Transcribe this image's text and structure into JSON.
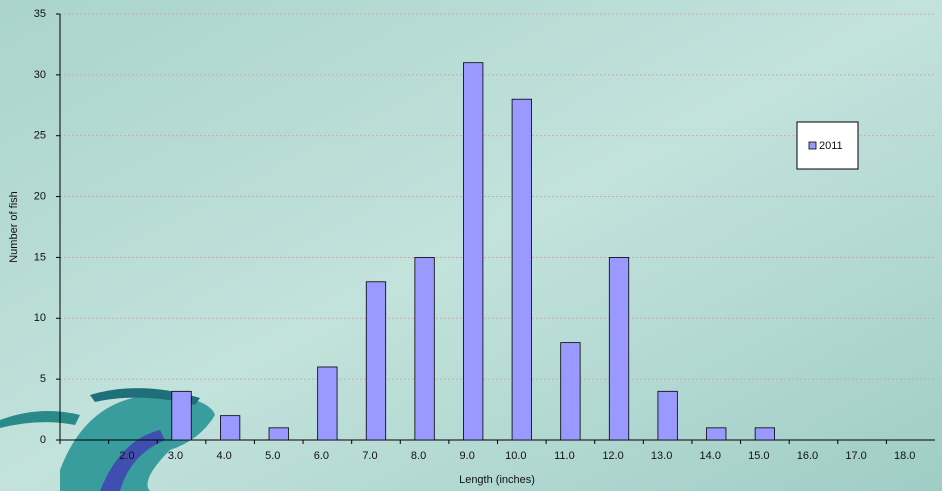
{
  "chart_data": {
    "type": "bar",
    "x_label": "Length (inches)",
    "y_label": "Number of fish",
    "categories": [
      null,
      "2.0",
      "3.0",
      "4.0",
      "5.0",
      "6.0",
      "7.0",
      "8.0",
      "9.0",
      "10.0",
      "11.0",
      "12.0",
      "13.0",
      "14.0",
      "15.0",
      "16.0",
      "17.0",
      "18.0"
    ],
    "series": [
      {
        "name": "2011",
        "color": "#9999ff",
        "values": [
          0,
          0,
          4,
          2,
          1,
          6,
          13,
          15,
          31,
          28,
          8,
          15,
          4,
          1,
          1,
          0,
          0,
          0
        ]
      }
    ],
    "ylim": [
      0,
      35
    ],
    "yticks": [
      0,
      5,
      10,
      15,
      20,
      25,
      30,
      35
    ],
    "grid": true,
    "legend": "right"
  }
}
